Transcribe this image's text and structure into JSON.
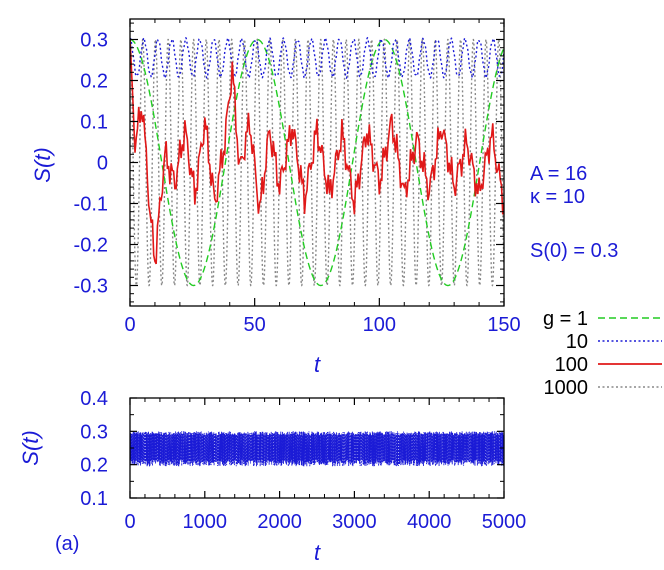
{
  "chart_data": [
    {
      "type": "line",
      "xlabel": "t",
      "ylabel": "S(t)",
      "xlim": [
        0,
        150
      ],
      "ylim": [
        -0.35,
        0.35
      ],
      "xticks": [
        "0",
        "50",
        "100",
        "150"
      ],
      "yticks": [
        "-0.3",
        "-0.2",
        "-0.1",
        "0",
        "0.1",
        "0.2",
        "0.3"
      ],
      "annotations": [
        "A = 16",
        "κ = 10",
        "S(0) = 0.3"
      ],
      "legend_location": "right",
      "series": [
        {
          "name": "g = 1",
          "color": "#22cc22",
          "style": "dashed",
          "description_model": "cosine, amplitude 0.3, period ~51",
          "x": [
            0,
            12.75,
            25.5,
            38.25,
            51,
            63.75,
            76.5,
            89.25,
            102,
            114.75,
            127.5,
            140.25,
            150
          ],
          "values": [
            0.3,
            0,
            -0.3,
            0,
            0.3,
            0,
            -0.3,
            0,
            0.3,
            0,
            -0.3,
            0,
            0.27
          ]
        },
        {
          "name": "10",
          "color": "#1b1bd6",
          "style": "dotted",
          "description_model": "oscillates between 0.21 and 0.30, period ~5.6",
          "x": [
            0,
            2.8,
            5.6,
            8.4,
            11.2,
            14,
            16.8
          ],
          "values": [
            0.3,
            0.21,
            0.3,
            0.21,
            0.3,
            0.21,
            0.3
          ]
        },
        {
          "name": "100",
          "color": "#e01818",
          "style": "solid",
          "x": [
            0,
            2,
            5,
            8,
            10,
            14,
            18,
            22,
            26,
            30,
            34,
            38,
            41,
            44,
            48,
            52,
            56,
            60,
            65,
            70,
            75,
            80,
            85,
            90,
            95,
            100,
            105,
            110,
            115,
            120,
            125,
            130,
            135,
            140,
            145,
            150
          ],
          "values": [
            0.3,
            0.05,
            0.14,
            -0.12,
            -0.24,
            0.02,
            -0.05,
            0.08,
            -0.08,
            0.1,
            -0.1,
            0.05,
            0.23,
            -0.02,
            0.1,
            -0.12,
            0.08,
            -0.06,
            0.09,
            -0.09,
            0.08,
            -0.08,
            0.07,
            -0.1,
            0.08,
            -0.05,
            0.1,
            -0.08,
            0.06,
            -0.07,
            0.09,
            -0.06,
            0.05,
            -0.08,
            0.07,
            -0.1
          ]
        },
        {
          "name": "1000",
          "color": "#888888",
          "style": "dotted",
          "description_model": "fast oscillation between -0.3 and 0.3, period ~5.1",
          "x": [
            0,
            2.55,
            5.1,
            7.65,
            10.2
          ],
          "values": [
            0.3,
            -0.3,
            0.3,
            -0.3,
            0.3
          ]
        }
      ]
    },
    {
      "type": "line",
      "xlabel": "t",
      "ylabel": "S(t)",
      "xlim": [
        0,
        5000
      ],
      "ylim": [
        0.1,
        0.4
      ],
      "xticks": [
        "0",
        "1000",
        "2000",
        "3000",
        "4000",
        "5000"
      ],
      "yticks": [
        "0.1",
        "0.2",
        "0.3",
        "0.4"
      ],
      "panel_label": "(a)",
      "series": [
        {
          "name": "10",
          "color": "#1b1bd6",
          "style": "dotted",
          "description_model": "dense oscillation between ~0.19 and ~0.30",
          "x": [
            0,
            5000
          ],
          "min_values": [
            0.2,
            0.19
          ],
          "max_values": [
            0.3,
            0.3
          ]
        }
      ]
    }
  ]
}
